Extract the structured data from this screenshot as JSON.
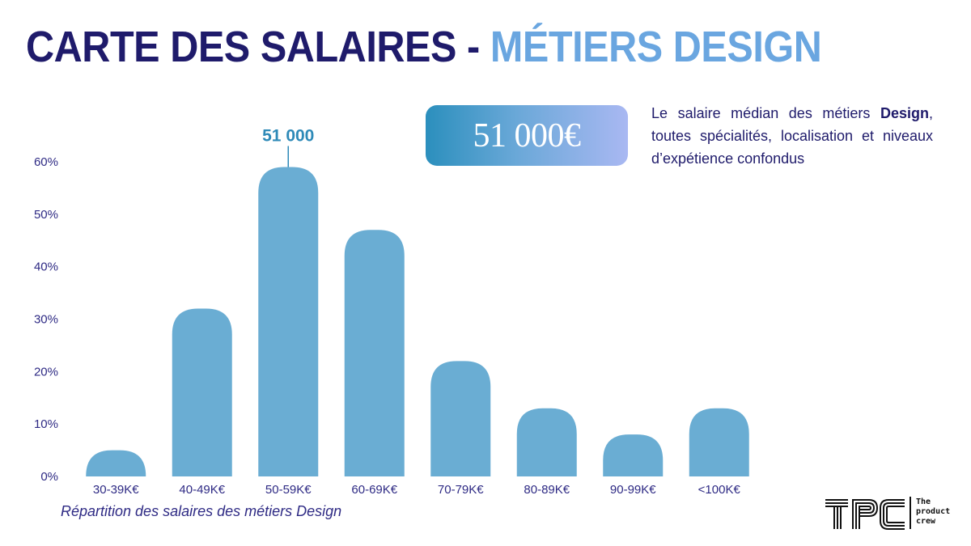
{
  "title": {
    "main": "CARTE DES SALAIRES",
    "separator": "-",
    "accent": "MÉTIERS DESIGN"
  },
  "median": {
    "value": "51 000€",
    "desc_before": "Le salaire médian des  métiers ",
    "desc_bold": "Design",
    "desc_after": ", toutes spécialités, localisation et niveaux d’expétience confondus"
  },
  "caption": "Répartition des salaires des métiers Design",
  "logo": {
    "letters": "TPC",
    "line1": "The",
    "line2": "product",
    "line3": "crew"
  },
  "colors": {
    "bar": "#6aadd3",
    "title_dark": "#1f1b6b",
    "title_accent": "#6aa6e0",
    "axis_text": "#2e2a84",
    "annotation": "#2e8ab8"
  },
  "chart_data": {
    "type": "bar",
    "categories": [
      "30-39K€",
      "40-49K€",
      "50-59K€",
      "60-69K€",
      "70-79K€",
      "80-89K€",
      "90-99K€",
      "<100K€"
    ],
    "values": [
      5,
      32,
      59,
      47,
      22,
      13,
      8,
      13
    ],
    "yticks": [
      "0%",
      "10%",
      "20%",
      "30%",
      "40%",
      "50%",
      "60%"
    ],
    "ylim": [
      0,
      60
    ],
    "grid": false,
    "title": "",
    "xlabel": "",
    "ylabel": "",
    "annotation": {
      "category": "50-59K€",
      "label": "51 000"
    }
  }
}
